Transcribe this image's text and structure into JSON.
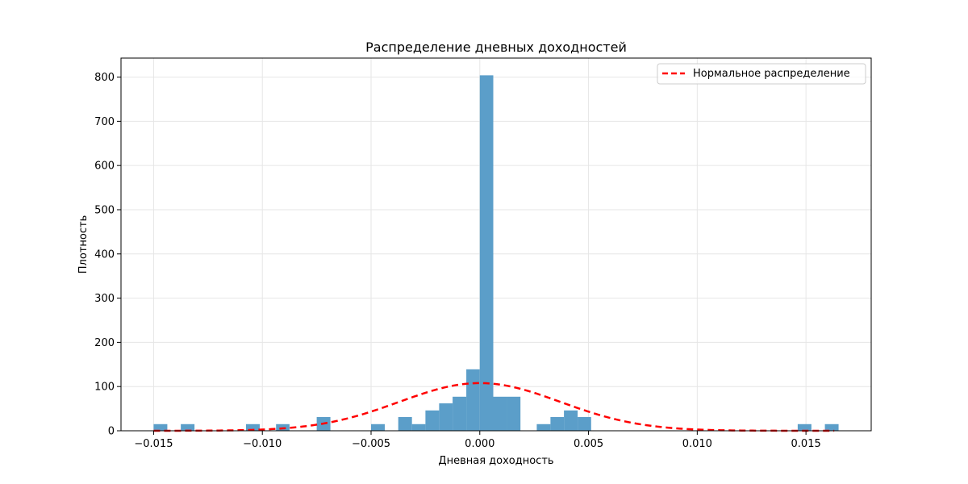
{
  "chart_data": {
    "type": "bar",
    "title": "Распределение дневных доходностей",
    "xlabel": "Дневная доходность",
    "ylabel": "Плотность",
    "xlim": [
      -0.0165,
      0.018
    ],
    "ylim": [
      0,
      843
    ],
    "x_ticks": [
      -0.015,
      -0.01,
      -0.005,
      0.0,
      0.005,
      0.01,
      0.015
    ],
    "x_tick_labels": [
      "−0.015",
      "−0.010",
      "−0.005",
      "0.000",
      "0.005",
      "0.010",
      "0.015"
    ],
    "y_ticks": [
      0,
      100,
      200,
      300,
      400,
      500,
      600,
      700,
      800
    ],
    "y_tick_labels": [
      "0",
      "100",
      "200",
      "300",
      "400",
      "500",
      "600",
      "700",
      "800"
    ],
    "grid": true,
    "bar_color": "#5b9ec9",
    "histogram": {
      "bins": [
        {
          "x0": -0.015,
          "x1": -0.01437,
          "density": 15
        },
        {
          "x0": -0.01375,
          "x1": -0.01312,
          "density": 15
        },
        {
          "x0": -0.01075,
          "x1": -0.01012,
          "density": 15
        },
        {
          "x0": -0.00937,
          "x1": -0.00875,
          "density": 15
        },
        {
          "x0": -0.0075,
          "x1": -0.00687,
          "density": 31
        },
        {
          "x0": -0.005,
          "x1": -0.00437,
          "density": 15
        },
        {
          "x0": -0.00375,
          "x1": -0.00312,
          "density": 31
        },
        {
          "x0": -0.00312,
          "x1": -0.0025,
          "density": 15
        },
        {
          "x0": -0.0025,
          "x1": -0.00187,
          "density": 46
        },
        {
          "x0": -0.00187,
          "x1": -0.00125,
          "density": 62
        },
        {
          "x0": -0.00125,
          "x1": -0.00062,
          "density": 77
        },
        {
          "x0": -0.00062,
          "x1": 0.0,
          "density": 139
        },
        {
          "x0": 0.0,
          "x1": 0.00062,
          "density": 804
        },
        {
          "x0": 0.00062,
          "x1": 0.00125,
          "density": 77
        },
        {
          "x0": 0.00125,
          "x1": 0.00187,
          "density": 77
        },
        {
          "x0": 0.00262,
          "x1": 0.00325,
          "density": 15
        },
        {
          "x0": 0.00325,
          "x1": 0.00387,
          "density": 31
        },
        {
          "x0": 0.00387,
          "x1": 0.0045,
          "density": 46
        },
        {
          "x0": 0.0045,
          "x1": 0.00512,
          "density": 31
        },
        {
          "x0": 0.01462,
          "x1": 0.01525,
          "density": 15
        },
        {
          "x0": 0.01587,
          "x1": 0.0165,
          "density": 15
        }
      ]
    },
    "series": [
      {
        "name": "Нормальное распределение",
        "type": "line",
        "style": "dashed",
        "color": "#ff0000",
        "normal": {
          "mean": 0.0,
          "std": 0.0037,
          "x_from": -0.015,
          "x_to": 0.0163
        }
      }
    ],
    "legend": {
      "placement": "top-right"
    }
  }
}
